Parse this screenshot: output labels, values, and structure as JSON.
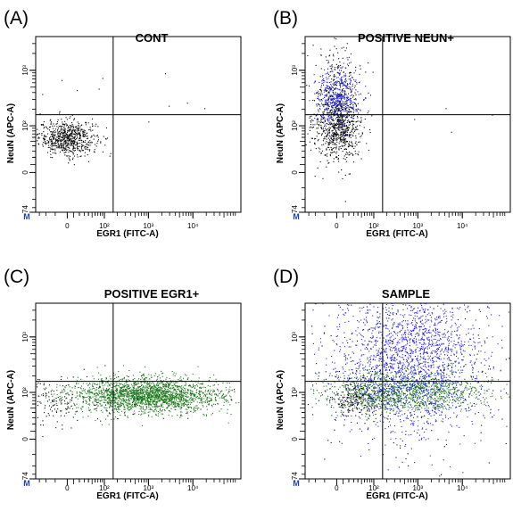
{
  "colors": {
    "negative": "#000000",
    "neun": "#1a1aee",
    "egr1": "#1b7a1b",
    "marker": "#1a3fd6"
  },
  "marker_label": "M",
  "chart_data": [
    {
      "type": "scatter",
      "panel": "(A)",
      "title": "CONT",
      "xlabel": "EGR1 (FITC-A)",
      "ylabel": "NeuN (APC-A)",
      "x_ticks": [
        "0",
        "10²",
        "10³",
        "10⁴"
      ],
      "y_ticks": [
        "-74",
        "0",
        "10²",
        "10³"
      ],
      "scale": "biexponential",
      "grid": false,
      "quadrant_gate": true,
      "series": [
        {
          "color_key": "negative",
          "clusters": [
            {
              "center": [
                0,
                60
              ],
              "spread": [
                0.07,
                0.05
              ],
              "count": 700
            },
            {
              "center": [
                500,
                300
              ],
              "spread": [
                0.45,
                0.12
              ],
              "count": 15
            }
          ]
        }
      ]
    },
    {
      "type": "scatter",
      "panel": "(B)",
      "title": "POSITIVE NEUN+",
      "xlabel": "EGR1 (FITC-A)",
      "ylabel": "NeuN (APC-A)",
      "x_ticks": [
        "0",
        "10²",
        "10³",
        "10⁴"
      ],
      "y_ticks": [
        "-74",
        "0",
        "10²",
        "10³"
      ],
      "scale": "biexponential",
      "grid": false,
      "quadrant_gate": true,
      "series": [
        {
          "color_key": "negative",
          "clusters": [
            {
              "center": [
                0,
                90
              ],
              "spread": [
                0.06,
                0.09
              ],
              "count": 650
            },
            {
              "center": [
                0,
                320
              ],
              "spread": [
                0.06,
                0.16
              ],
              "count": 350
            },
            {
              "center": [
                900,
                200
              ],
              "spread": [
                0.35,
                0.08
              ],
              "count": 6
            }
          ]
        },
        {
          "color_key": "neun",
          "clusters": [
            {
              "center": [
                0,
                330
              ],
              "spread": [
                0.05,
                0.09
              ],
              "count": 450
            }
          ]
        }
      ]
    },
    {
      "type": "scatter",
      "panel": "(C)",
      "title": "POSITIVE EGR1+",
      "xlabel": "EGR1 (FITC-A)",
      "ylabel": "NeuN (APC-A)",
      "x_ticks": [
        "0",
        "10²",
        "10³",
        "10⁴"
      ],
      "y_ticks": [
        "-74",
        "0",
        "10²",
        "10³"
      ],
      "scale": "biexponential",
      "grid": false,
      "quadrant_gate": true,
      "series": [
        {
          "color_key": "negative",
          "clusters": [
            {
              "center": [
                200,
                80
              ],
              "spread": [
                0.35,
                0.07
              ],
              "count": 200
            },
            {
              "center": [
                -30,
                60
              ],
              "spread": [
                0.06,
                0.08
              ],
              "count": 80
            }
          ]
        },
        {
          "color_key": "egr1",
          "clusters": [
            {
              "center": [
                900,
                90
              ],
              "spread": [
                0.18,
                0.05
              ],
              "count": 2200
            }
          ]
        }
      ]
    },
    {
      "type": "scatter",
      "panel": "(D)",
      "title": "SAMPLE",
      "xlabel": "EGR1 (FITC-A)",
      "ylabel": "NeuN (APC-A)",
      "x_ticks": [
        "0",
        "10²",
        "10³",
        "10⁴"
      ],
      "y_ticks": [
        "-74",
        "0",
        "10²",
        "10³"
      ],
      "scale": "biexponential",
      "grid": false,
      "quadrant_gate": true,
      "series": [
        {
          "color_key": "negative",
          "clusters": [
            {
              "center": [
                40,
                75
              ],
              "spread": [
                0.07,
                0.05
              ],
              "count": 250
            },
            {
              "center": [
                500,
                180
              ],
              "spread": [
                0.3,
                0.25
              ],
              "count": 250
            }
          ]
        },
        {
          "color_key": "egr1",
          "clusters": [
            {
              "center": [
                500,
                100
              ],
              "spread": [
                0.2,
                0.06
              ],
              "count": 1200
            }
          ]
        },
        {
          "color_key": "neun",
          "clusters": [
            {
              "center": [
                700,
                450
              ],
              "spread": [
                0.18,
                0.22
              ],
              "count": 2000
            }
          ]
        }
      ]
    }
  ]
}
